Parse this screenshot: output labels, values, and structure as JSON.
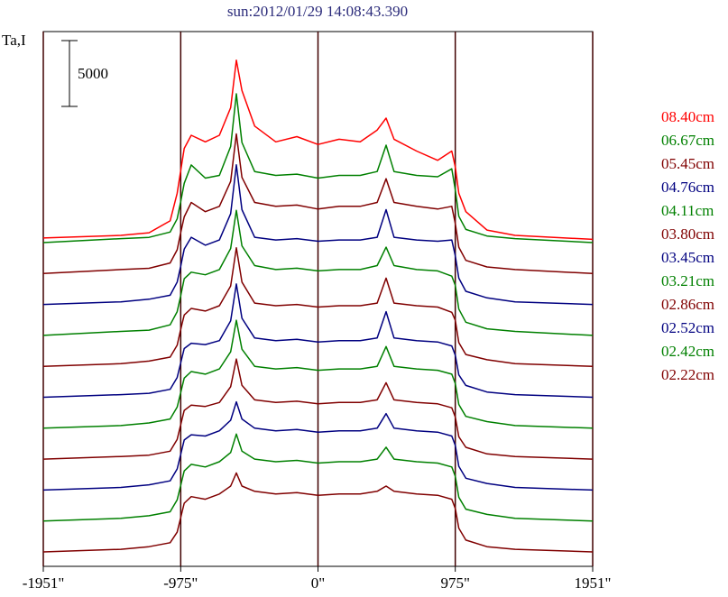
{
  "chart_data": {
    "type": "line",
    "title": "sun:2012/01/29 14:08:43.390",
    "y_label": "Ta,I",
    "scale_bar": 5000,
    "xlim": [
      -1951,
      1951
    ],
    "xticks": [
      {
        "value": -1951,
        "label": "-1951\""
      },
      {
        "value": -975,
        "label": "-975\""
      },
      {
        "value": 0,
        "label": "0\""
      },
      {
        "value": 975,
        "label": "975\""
      },
      {
        "value": 1951,
        "label": "1951\""
      }
    ],
    "grid": true,
    "x": [
      -1951,
      -1400,
      -1200,
      -1050,
      -1000,
      -975,
      -950,
      -900,
      -800,
      -700,
      -620,
      -580,
      -540,
      -450,
      -300,
      -150,
      0,
      150,
      300,
      420,
      484,
      540,
      700,
      850,
      950,
      975,
      1000,
      1050,
      1200,
      1400,
      1951
    ],
    "series": [
      {
        "name": "08.40cm",
        "color": "#ff0000",
        "values": [
          -2000,
          -1800,
          -1600,
          -700,
          1400,
          3100,
          4800,
          5800,
          5300,
          5800,
          7900,
          11500,
          9200,
          6500,
          5300,
          5700,
          5100,
          5500,
          5300,
          6200,
          7100,
          5500,
          4600,
          3900,
          4600,
          3400,
          1400,
          0,
          -1400,
          -1800,
          -2100
        ]
      },
      {
        "name": "06.67cm",
        "color": "#008000",
        "values": [
          0,
          300,
          400,
          800,
          1800,
          3100,
          4500,
          5900,
          4900,
          5100,
          7300,
          11300,
          7600,
          5400,
          5100,
          5200,
          4900,
          5100,
          5100,
          5400,
          7400,
          5400,
          5100,
          5000,
          5600,
          4000,
          2000,
          1000,
          500,
          300,
          0
        ]
      },
      {
        "name": "05.45cm",
        "color": "#800000",
        "values": [
          0,
          300,
          400,
          800,
          1800,
          3100,
          4300,
          5400,
          4700,
          5100,
          7000,
          10600,
          7300,
          5400,
          5100,
          5200,
          4900,
          5100,
          5100,
          5400,
          7200,
          5400,
          5100,
          4900,
          5100,
          3800,
          2000,
          1000,
          500,
          300,
          0
        ]
      },
      {
        "name": "04.76cm",
        "color": "#000080",
        "values": [
          0,
          200,
          400,
          700,
          1700,
          2900,
          4200,
          5100,
          4500,
          4900,
          6900,
          10600,
          7200,
          5100,
          4900,
          5000,
          4800,
          4900,
          4900,
          5100,
          7200,
          5100,
          4900,
          4800,
          4900,
          3700,
          2000,
          1000,
          500,
          200,
          0
        ]
      },
      {
        "name": "04.11cm",
        "color": "#008000",
        "values": [
          0,
          300,
          400,
          800,
          1800,
          3000,
          4300,
          4800,
          4600,
          5000,
          6600,
          9500,
          6800,
          5300,
          5000,
          5100,
          4900,
          5000,
          5000,
          5300,
          6700,
          5300,
          5000,
          4900,
          4500,
          3800,
          2000,
          1000,
          500,
          300,
          0
        ]
      },
      {
        "name": "03.80cm",
        "color": "#800000",
        "values": [
          0,
          200,
          400,
          700,
          1600,
          2800,
          3900,
          4400,
          4200,
          4600,
          6100,
          9000,
          6400,
          4800,
          4600,
          4700,
          4500,
          4600,
          4600,
          4800,
          6700,
          4800,
          4600,
          4500,
          4100,
          3500,
          1800,
          900,
          500,
          200,
          0
        ]
      },
      {
        "name": "03.45cm",
        "color": "#000080",
        "values": [
          0,
          200,
          300,
          600,
          1500,
          2600,
          3700,
          4100,
          4000,
          4300,
          5800,
          8600,
          6000,
          4500,
          4300,
          4400,
          4200,
          4300,
          4300,
          4500,
          6500,
          4500,
          4300,
          4200,
          3900,
          3200,
          1700,
          900,
          400,
          200,
          0
        ]
      },
      {
        "name": "03.21cm",
        "color": "#008000",
        "values": [
          0,
          200,
          400,
          700,
          1600,
          2700,
          3800,
          4300,
          4100,
          4500,
          5800,
          8200,
          6000,
          4700,
          4500,
          4600,
          4400,
          4500,
          4500,
          4700,
          6200,
          4700,
          4500,
          4400,
          4100,
          3400,
          1800,
          900,
          500,
          200,
          0
        ]
      },
      {
        "name": "02.86cm",
        "color": "#800000",
        "values": [
          0,
          200,
          300,
          600,
          1500,
          2600,
          3700,
          4100,
          4000,
          4300,
          5500,
          7600,
          5600,
          4500,
          4300,
          4400,
          4200,
          4300,
          4300,
          4500,
          5800,
          4500,
          4300,
          4200,
          3900,
          3200,
          1700,
          900,
          400,
          200,
          0
        ]
      },
      {
        "name": "02.52cm",
        "color": "#000080",
        "values": [
          0,
          200,
          400,
          700,
          1600,
          2700,
          3800,
          4200,
          4100,
          4500,
          5300,
          6700,
          5400,
          4700,
          4500,
          4600,
          4400,
          4500,
          4500,
          4700,
          5800,
          4700,
          4500,
          4400,
          4100,
          3400,
          1800,
          900,
          500,
          200,
          0
        ]
      },
      {
        "name": "02.42cm",
        "color": "#008000",
        "values": [
          0,
          200,
          400,
          700,
          1600,
          2700,
          3800,
          4300,
          4100,
          4500,
          5200,
          6600,
          5300,
          4700,
          4500,
          4600,
          4400,
          4500,
          4500,
          4700,
          5600,
          4700,
          4500,
          4400,
          4100,
          3400,
          1800,
          900,
          500,
          200,
          0
        ]
      },
      {
        "name": "02.22cm",
        "color": "#800000",
        "values": [
          0,
          200,
          400,
          700,
          1500,
          2600,
          3700,
          4200,
          4000,
          4400,
          5000,
          6000,
          5000,
          4600,
          4400,
          4500,
          4300,
          4400,
          4400,
          4600,
          5000,
          4600,
          4400,
          4300,
          4000,
          3300,
          1800,
          900,
          400,
          200,
          0
        ]
      }
    ]
  }
}
